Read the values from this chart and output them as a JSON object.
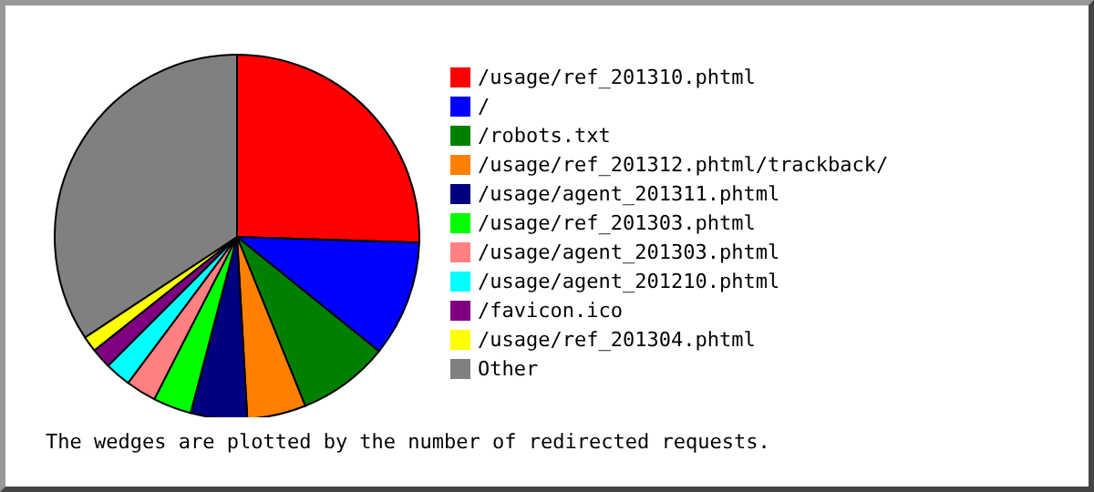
{
  "chart_data": {
    "type": "pie",
    "categories": [
      "/usage/ref_201310.phtml",
      "/",
      "/robots.txt",
      "/usage/ref_201312.phtml/trackback/",
      "/usage/agent_201311.phtml",
      "/usage/ref_201303.phtml",
      "/usage/agent_201303.phtml",
      "/usage/agent_201210.phtml",
      "/favicon.ico",
      "/usage/ref_201304.phtml",
      "Other"
    ],
    "values": [
      25.5,
      10.3,
      8.1,
      5.2,
      5.0,
      3.4,
      2.7,
      2.3,
      1.8,
      1.4,
      34.3
    ],
    "colors": [
      "#ff0000",
      "#0000ff",
      "#008000",
      "#ff8000",
      "#000080",
      "#00ff00",
      "#ff8080",
      "#00ffff",
      "#800080",
      "#ffff00",
      "#808080"
    ],
    "legend": "right",
    "annotations": [
      "The wedges are plotted by the number of redirected requests."
    ]
  }
}
